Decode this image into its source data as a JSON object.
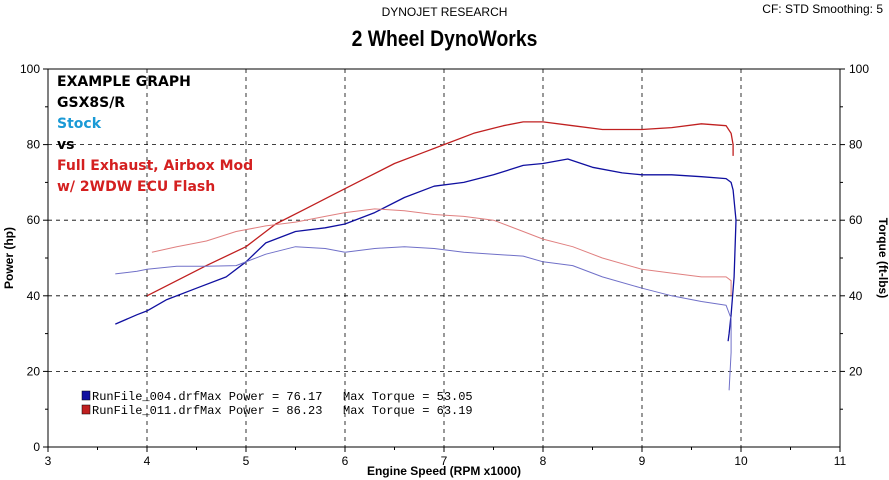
{
  "header": {
    "brand": "DYNOJET RESEARCH",
    "cf_info": "CF: STD  Smoothing: 5",
    "title": "2 Wheel DynoWorks"
  },
  "annotations": [
    {
      "text": "EXAMPLE GRAPH",
      "color": "#000000"
    },
    {
      "text": "GSX8S/R",
      "color": "#000000"
    },
    {
      "text": "Stock",
      "color": "#1a9ad6"
    },
    {
      "text": "vs",
      "color": "#000000"
    },
    {
      "text": "Full Exhaust, Airbox Mod",
      "color": "#d42020"
    },
    {
      "text": "w/ 2WDW ECU Flash",
      "color": "#d42020"
    }
  ],
  "legend": [
    {
      "file": "RunFile_004.drf",
      "max_power_label": "Max Power = 76.17",
      "max_torque_label": "Max Torque = 53.05",
      "color": "#1010a0"
    },
    {
      "file": "RunFile_011.drf",
      "max_power_label": "Max Power = 86.23",
      "max_torque_label": "Max Torque = 63.19",
      "color": "#c02020"
    }
  ],
  "chart_data": {
    "type": "line",
    "xlabel": "Engine Speed (RPM x1000)",
    "ylabel_left": "Power (hp)",
    "ylabel_right": "Torque (ft-lbs)",
    "xlim": [
      3,
      11
    ],
    "ylim": [
      0,
      100
    ],
    "xticks": [
      "3",
      "4",
      "5",
      "6",
      "7",
      "8",
      "9",
      "10",
      "11"
    ],
    "yticks": [
      "0",
      "20",
      "40",
      "60",
      "80",
      "100"
    ],
    "yticks_right": [
      "20",
      "40",
      "60",
      "80",
      "100"
    ],
    "series": [
      {
        "name": "RunFile_004 Power",
        "color": "#1010a0",
        "width": 1.3,
        "x": [
          3.68,
          3.9,
          4.0,
          4.2,
          4.5,
          4.8,
          5.0,
          5.2,
          5.5,
          5.8,
          6.0,
          6.3,
          6.6,
          6.9,
          7.2,
          7.5,
          7.8,
          8.0,
          8.25,
          8.5,
          8.8,
          9.0,
          9.3,
          9.6,
          9.85,
          9.9,
          9.92,
          9.95,
          9.93,
          9.9,
          9.88,
          9.87
        ],
        "y": [
          32.5,
          35,
          36,
          39,
          42,
          45,
          49,
          54,
          57,
          58,
          59,
          62,
          66,
          69,
          70,
          72,
          74.5,
          75,
          76.2,
          74,
          72.5,
          72,
          72,
          71.5,
          71,
          70,
          68,
          60,
          45,
          35,
          30,
          28
        ]
      },
      {
        "name": "RunFile_011 Power",
        "color": "#c02020",
        "width": 1.3,
        "x": [
          4.0,
          4.3,
          4.6,
          5.0,
          5.3,
          5.6,
          5.9,
          6.2,
          6.5,
          6.8,
          7.0,
          7.3,
          7.6,
          7.8,
          8.0,
          8.3,
          8.6,
          9.0,
          9.3,
          9.6,
          9.85,
          9.9,
          9.92,
          9.92
        ],
        "y": [
          40,
          44,
          48,
          53,
          59,
          63,
          67,
          71,
          75,
          78,
          80,
          83,
          85,
          86,
          86,
          85,
          84,
          84,
          84.5,
          85.5,
          85,
          83,
          80,
          77
        ]
      },
      {
        "name": "RunFile_004 Torque",
        "color": "#7070c8",
        "width": 1,
        "x": [
          3.68,
          3.9,
          4.0,
          4.3,
          4.6,
          4.9,
          5.2,
          5.5,
          5.8,
          6.0,
          6.3,
          6.6,
          6.9,
          7.2,
          7.5,
          7.8,
          8.0,
          8.3,
          8.6,
          9.0,
          9.3,
          9.6,
          9.85,
          9.9,
          9.9,
          9.88
        ],
        "y": [
          45.8,
          46.5,
          47,
          47.8,
          47.8,
          48,
          51,
          53,
          52.5,
          51.5,
          52.5,
          53,
          52.5,
          51.5,
          51,
          50.5,
          49,
          48,
          45,
          42,
          40,
          38.5,
          37.5,
          34,
          25,
          15
        ]
      },
      {
        "name": "RunFile_011 Torque",
        "color": "#e08080",
        "width": 1,
        "x": [
          4.05,
          4.3,
          4.6,
          4.9,
          5.2,
          5.5,
          5.8,
          6.0,
          6.3,
          6.6,
          6.9,
          7.2,
          7.5,
          7.8,
          8.0,
          8.3,
          8.6,
          9.0,
          9.3,
          9.6,
          9.85,
          9.9,
          9.9
        ],
        "y": [
          51.5,
          53,
          54.5,
          57,
          58.5,
          59.5,
          61,
          62,
          63,
          62.5,
          61.5,
          61,
          60,
          57,
          55,
          53,
          50,
          47,
          46,
          45,
          45,
          44,
          40
        ]
      }
    ]
  }
}
